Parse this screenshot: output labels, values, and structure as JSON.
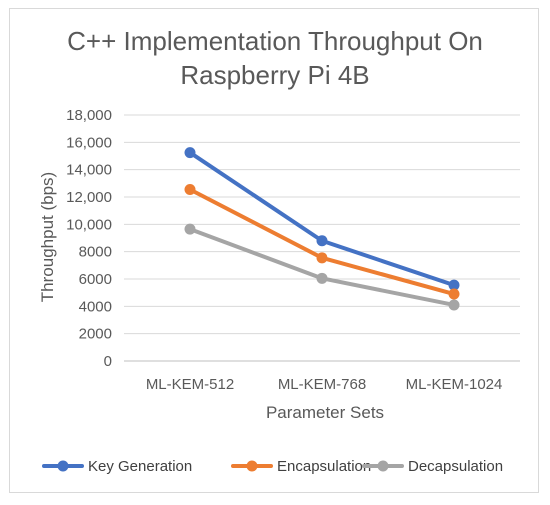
{
  "chart_data": {
    "type": "line",
    "title_lines": [
      "C++ Implementation Throughput On",
      "Raspberry Pi 4B"
    ],
    "xlabel": "Parameter Sets",
    "ylabel": "Throughput (bps)",
    "categories": [
      "ML-KEM-512",
      "ML-KEM-768",
      "ML-KEM-1024"
    ],
    "y_ticks": [
      "0",
      "2000",
      "4000",
      "6000",
      "8000",
      "10,000",
      "12,000",
      "14,000",
      "16,000",
      "18,000"
    ],
    "ylim": [
      0,
      18000
    ],
    "grid": true,
    "legend_position": "bottom",
    "series": [
      {
        "name": "Key Generation",
        "color": "#4472C4",
        "values": [
          15250,
          8800,
          5550
        ]
      },
      {
        "name": "Encapsulation",
        "color": "#ED7D31",
        "values": [
          12550,
          7550,
          4900
        ]
      },
      {
        "name": "Decapsulation",
        "color": "#A5A5A5",
        "values": [
          9650,
          6050,
          4100
        ]
      }
    ]
  }
}
